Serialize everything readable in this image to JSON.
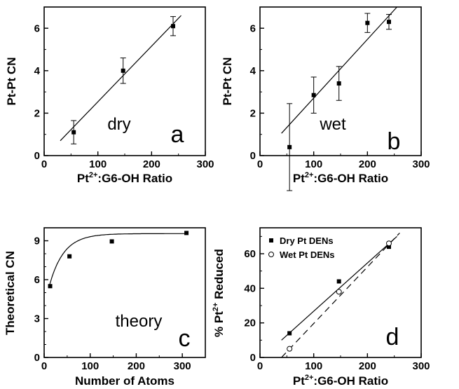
{
  "chart_data": [
    {
      "panel": "a",
      "type": "scatter",
      "xlabel_parts": [
        "Pt",
        "2+",
        ":G6-OH Ratio"
      ],
      "ylabel": "Pt-Pt CN",
      "annotation": "dry",
      "letter": "a",
      "xlim": [
        0,
        300
      ],
      "ylim": [
        0,
        7
      ],
      "xticks": [
        0,
        100,
        200,
        300
      ],
      "yticks": [
        0,
        2,
        4,
        6
      ],
      "x_minor": 50,
      "y_minor": 1,
      "points": [
        {
          "x": 55,
          "y": 1.1,
          "err": 0.55
        },
        {
          "x": 147,
          "y": 4.0,
          "err": 0.6
        },
        {
          "x": 240,
          "y": 6.1,
          "err": 0.45
        }
      ],
      "fits": [
        {
          "style": "solid",
          "x": [
            30,
            255
          ],
          "y": [
            0.7,
            6.6
          ]
        }
      ]
    },
    {
      "panel": "b",
      "type": "scatter",
      "xlabel_parts": [
        "Pt",
        "2+",
        ":G6-OH Ratio"
      ],
      "ylabel": "Pt-Pt CN",
      "annotation": "wet",
      "letter": "b",
      "xlim": [
        0,
        300
      ],
      "ylim": [
        0,
        7
      ],
      "xticks": [
        0,
        100,
        200,
        300
      ],
      "yticks": [
        0,
        2,
        4,
        6
      ],
      "x_minor": 50,
      "y_minor": 1,
      "points": [
        {
          "x": 55,
          "y": 0.4,
          "err": 2.05
        },
        {
          "x": 100,
          "y": 2.85,
          "err": 0.85
        },
        {
          "x": 147,
          "y": 3.4,
          "err": 0.8
        },
        {
          "x": 200,
          "y": 6.25,
          "err": 0.45
        },
        {
          "x": 240,
          "y": 6.3,
          "err": 0.35
        }
      ],
      "fits": [
        {
          "style": "solid",
          "x": [
            40,
            255
          ],
          "y": [
            1.05,
            7.0
          ]
        }
      ]
    },
    {
      "panel": "c",
      "type": "scatter",
      "xlabel": "Number of Atoms",
      "ylabel": "Theoretical CN",
      "annotation": "theory",
      "letter": "c",
      "xlim": [
        0,
        350
      ],
      "ylim": [
        0,
        10
      ],
      "xticks": [
        0,
        100,
        200,
        300
      ],
      "yticks": [
        0,
        3,
        6,
        9
      ],
      "x_minor": 50,
      "y_minor": 1,
      "points": [
        {
          "x": 13,
          "y": 5.5
        },
        {
          "x": 55,
          "y": 7.8
        },
        {
          "x": 147,
          "y": 8.95
        },
        {
          "x": 309,
          "y": 9.6
        }
      ],
      "curve": {
        "style": "solid",
        "x_start": 10,
        "x_end": 312,
        "a": 9.55,
        "b": 4.2,
        "k": 0.032
      }
    },
    {
      "panel": "d",
      "type": "scatter",
      "xlabel_parts": [
        "Pt",
        "2+",
        ":G6-OH Ratio"
      ],
      "ylabel_parts": [
        "% Pt",
        "2+",
        " Reduced"
      ],
      "letter": "d",
      "xlim": [
        0,
        300
      ],
      "ylim": [
        0,
        75
      ],
      "xticks": [
        0,
        100,
        200,
        300
      ],
      "yticks": [
        0,
        20,
        40,
        60
      ],
      "x_minor": 50,
      "y_minor": 10,
      "legend": [
        {
          "name": "Dry Pt DENs",
          "marker": "filled-square"
        },
        {
          "name": "Wet Pt DENs",
          "marker": "open-circle"
        }
      ],
      "series": [
        {
          "name": "Dry Pt DENs",
          "marker": "filled-square",
          "points": [
            {
              "x": 55,
              "y": 14
            },
            {
              "x": 147,
              "y": 44
            },
            {
              "x": 240,
              "y": 64
            }
          ]
        },
        {
          "name": "Wet Pt DENs",
          "marker": "open-circle",
          "points": [
            {
              "x": 55,
              "y": 5
            },
            {
              "x": 147,
              "y": 38
            },
            {
              "x": 240,
              "y": 66
            }
          ]
        }
      ],
      "fits": [
        {
          "style": "solid",
          "x": [
            40,
            255
          ],
          "y": [
            10,
            70
          ]
        },
        {
          "style": "dashed",
          "x": [
            40,
            260
          ],
          "y": [
            0,
            72
          ]
        }
      ]
    }
  ]
}
